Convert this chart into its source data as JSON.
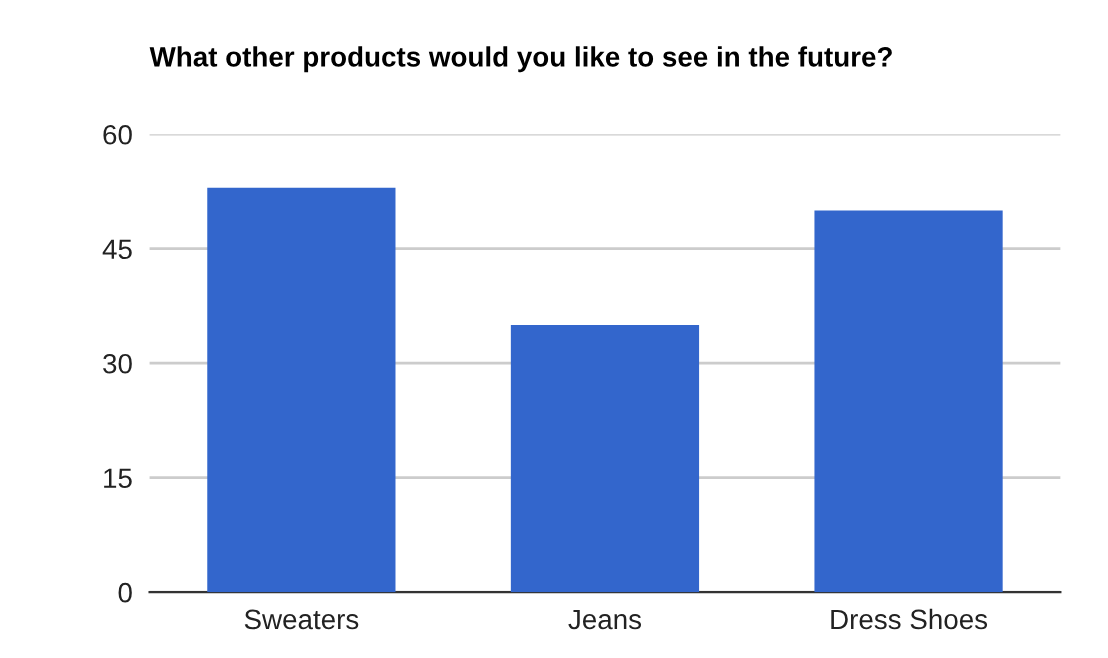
{
  "chart_data": {
    "type": "bar",
    "title": "What other products would you like to see in the future?",
    "categories": [
      "Sweaters",
      "Jeans",
      "Dress Shoes"
    ],
    "values": [
      53,
      35,
      50
    ],
    "color": "#3366cc",
    "ylim": [
      0,
      60
    ],
    "yticks": [
      0,
      15,
      30,
      45,
      60
    ],
    "grid": "y"
  }
}
